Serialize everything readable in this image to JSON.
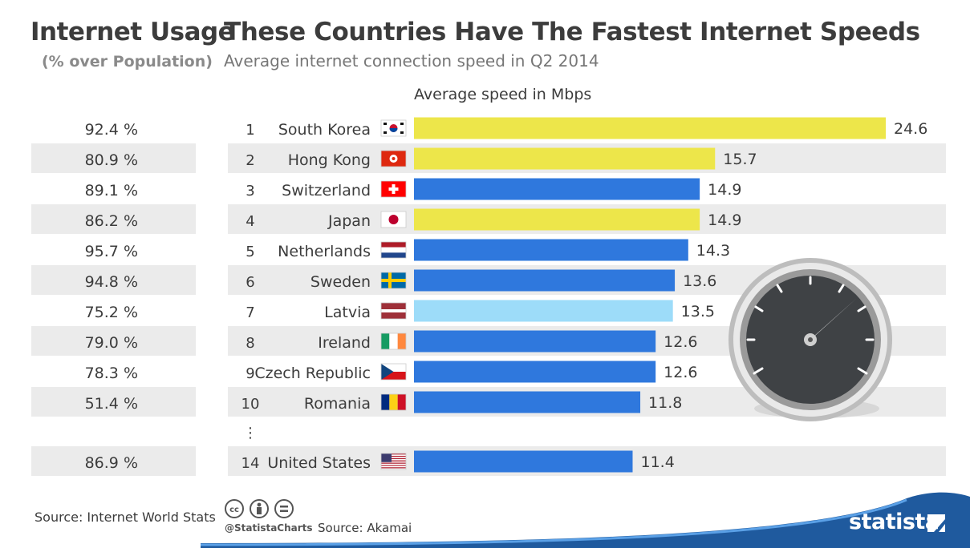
{
  "header": {
    "left_title": "Internet Usage",
    "left_subtitle": "(% over Population)",
    "title": "These Countries Have The Fastest Internet Speeds",
    "subtitle": "Average internet connection speed in Q2 2014"
  },
  "chart_data": {
    "type": "bar",
    "orientation": "horizontal",
    "xlabel": "Average speed in Mbps",
    "xlim": [
      0,
      24.6
    ],
    "grid": false,
    "ellipsis": "⋮",
    "columns": [
      "Internet Usage (% over Population)",
      "Rank",
      "Country",
      "Average speed in Mbps"
    ],
    "rows": [
      {
        "usage": "92.4 %",
        "rank": "1",
        "country": "South Korea",
        "flag": "flag-south-korea",
        "value": 24.6,
        "value_label": "24.6",
        "color": "#ede64a"
      },
      {
        "usage": "80.9 %",
        "rank": "2",
        "country": "Hong Kong",
        "flag": "flag-hong-kong",
        "value": 15.7,
        "value_label": "15.7",
        "color": "#ede64a"
      },
      {
        "usage": "89.1 %",
        "rank": "3",
        "country": "Switzerland",
        "flag": "flag-switzerland",
        "value": 14.9,
        "value_label": "14.9",
        "color": "#2f78dd"
      },
      {
        "usage": "86.2 %",
        "rank": "4",
        "country": "Japan",
        "flag": "flag-japan",
        "value": 14.9,
        "value_label": "14.9",
        "color": "#ede64a"
      },
      {
        "usage": "95.7 %",
        "rank": "5",
        "country": "Netherlands",
        "flag": "flag-netherlands",
        "value": 14.3,
        "value_label": "14.3",
        "color": "#2f78dd"
      },
      {
        "usage": "94.8 %",
        "rank": "6",
        "country": "Sweden",
        "flag": "flag-sweden",
        "value": 13.6,
        "value_label": "13.6",
        "color": "#2f78dd"
      },
      {
        "usage": "75.2 %",
        "rank": "7",
        "country": "Latvia",
        "flag": "flag-latvia",
        "value": 13.5,
        "value_label": "13.5",
        "color": "#9ddcf9"
      },
      {
        "usage": "79.0 %",
        "rank": "8",
        "country": "Ireland",
        "flag": "flag-ireland",
        "value": 12.6,
        "value_label": "12.6",
        "color": "#2f78dd"
      },
      {
        "usage": "78.3 %",
        "rank": "9",
        "country": "Czech Republic",
        "flag": "flag-czech-republic",
        "value": 12.6,
        "value_label": "12.6",
        "color": "#2f78dd"
      },
      {
        "usage": "51.4 %",
        "rank": "10",
        "country": "Romania",
        "flag": "flag-romania",
        "value": 11.8,
        "value_label": "11.8",
        "color": "#2f78dd"
      },
      {
        "usage": "86.9 %",
        "rank": "14",
        "country": "United States",
        "flag": "flag-united-states",
        "value": 11.4,
        "value_label": "11.4",
        "color": "#2f78dd"
      }
    ]
  },
  "colors": {
    "stripe": "#ebebeb",
    "text": "#3c3c3c",
    "brand_blue": "#1f5a9e"
  },
  "decoration": {
    "gauge": "speedometer-icon"
  },
  "footer": {
    "source_left": "Source: Internet World Stats",
    "license_icons": [
      "cc",
      "by",
      "nd"
    ],
    "handle": "@StatistaCharts",
    "source_right": "Source: Akamai",
    "brand": "statista"
  }
}
